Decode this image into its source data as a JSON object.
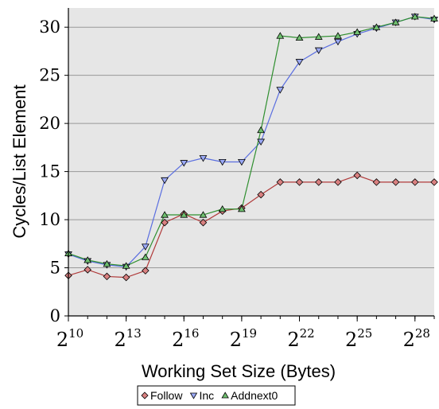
{
  "chart_data": {
    "type": "line",
    "xlabel": "Working Set Size (Bytes)",
    "ylabel": "Cycles/List Element",
    "x_scale": "log2",
    "x": [
      10,
      11,
      12,
      13,
      14,
      15,
      16,
      17,
      18,
      19,
      20,
      21,
      22,
      23,
      24,
      25,
      26,
      27,
      28,
      29
    ],
    "xlim": [
      10,
      29
    ],
    "ylim": [
      0,
      32
    ],
    "x_ticks": [
      {
        "base": "2",
        "exp": "10",
        "value": 10
      },
      {
        "base": "2",
        "exp": "13",
        "value": 13
      },
      {
        "base": "2",
        "exp": "16",
        "value": 16
      },
      {
        "base": "2",
        "exp": "19",
        "value": 19
      },
      {
        "base": "2",
        "exp": "22",
        "value": 22
      },
      {
        "base": "2",
        "exp": "25",
        "value": 25
      },
      {
        "base": "2",
        "exp": "28",
        "value": 28
      }
    ],
    "y_ticks": [
      "0",
      "5",
      "10",
      "15",
      "20",
      "25",
      "30"
    ],
    "grid": "horizontal",
    "legend_position": "bottom",
    "series": [
      {
        "name": "Follow",
        "marker": "diamond",
        "color": "#b03a3a",
        "fill": "#d98080",
        "values": [
          4.2,
          4.8,
          4.1,
          4.0,
          4.7,
          9.7,
          10.6,
          9.7,
          10.9,
          11.2,
          12.6,
          13.9,
          13.9,
          13.9,
          13.9,
          14.6,
          13.9,
          13.9,
          13.9,
          13.9
        ]
      },
      {
        "name": "Inc",
        "marker": "triangle-down",
        "color": "#5a6ee0",
        "fill": "#9aa8f5",
        "values": [
          6.4,
          5.7,
          5.3,
          5.1,
          7.2,
          14.1,
          15.9,
          16.4,
          16.0,
          16.0,
          18.1,
          23.5,
          26.4,
          27.6,
          28.5,
          29.3,
          29.9,
          30.5,
          31.1,
          30.8
        ]
      },
      {
        "name": "Addnext0",
        "marker": "triangle-up",
        "color": "#2f8f2f",
        "fill": "#70c070",
        "values": [
          6.5,
          5.8,
          5.4,
          5.2,
          6.1,
          10.5,
          10.5,
          10.5,
          11.1,
          11.1,
          19.3,
          29.1,
          28.9,
          29.0,
          29.1,
          29.5,
          30.0,
          30.5,
          31.1,
          30.9
        ]
      }
    ]
  }
}
